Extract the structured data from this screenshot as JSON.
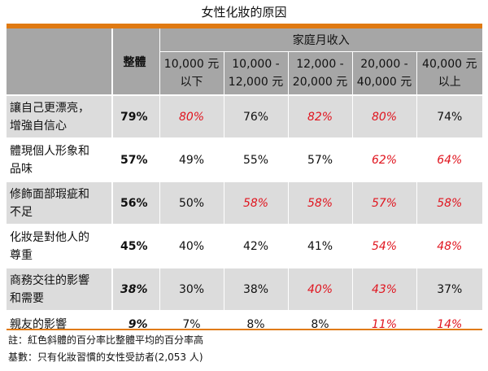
{
  "title": "女性化妝的原因",
  "header": {
    "income_label": "家庭月收入",
    "overall_label": "整體",
    "income_brackets": [
      {
        "line1": "10,000 元",
        "line2": "以下"
      },
      {
        "line1": "10,000 -",
        "line2": "12,000 元"
      },
      {
        "line1": "12,000 -",
        "line2": "20,000 元"
      },
      {
        "line1": "20,000 -",
        "line2": "40,000 元"
      },
      {
        "line1": "40,000 元",
        "line2": "以上"
      }
    ]
  },
  "rows": [
    {
      "label_line1": "讓自己更漂亮，",
      "label_line2": "增強自信心",
      "overall": "79%",
      "values": [
        "80%",
        "76%",
        "82%",
        "80%",
        "74%"
      ]
    },
    {
      "label_line1": "體現個人形象和",
      "label_line2": "品味",
      "overall": "57%",
      "values": [
        "49%",
        "55%",
        "57%",
        "62%",
        "64%"
      ]
    },
    {
      "label_line1": "修飾面部瑕疵和",
      "label_line2": "不足",
      "overall": "56%",
      "values": [
        "50%",
        "58%",
        "58%",
        "57%",
        "58%"
      ]
    },
    {
      "label_line1": "化妝是對他人的",
      "label_line2": "尊重",
      "overall": "45%",
      "values": [
        "40%",
        "42%",
        "41%",
        "54%",
        "48%"
      ]
    },
    {
      "label_line1": "商務交往的影響",
      "label_line2": "和需要",
      "overall": "38%",
      "values": [
        "30%",
        "38%",
        "40%",
        "43%",
        "37%"
      ]
    },
    {
      "label_line1": "親友的影響",
      "label_line2": "",
      "overall": "9%",
      "values": [
        "7%",
        "8%",
        "8%",
        "11%",
        "14%"
      ]
    }
  ],
  "highlight_color": "#e0141e",
  "accent_color": "#e07a12",
  "notes": {
    "note1": "註：紅色斜體的百分率比整體平均的百分率高",
    "note2": "基數：只有化妝習慣的女性受訪者(2,053 人)"
  }
}
